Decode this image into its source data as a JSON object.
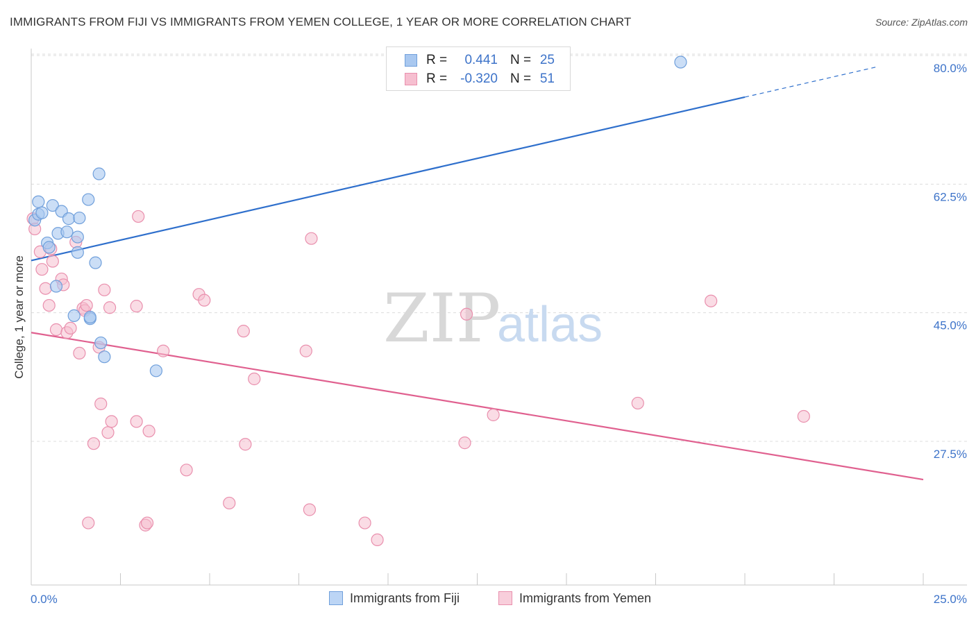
{
  "title": "IMMIGRANTS FROM FIJI VS IMMIGRANTS FROM YEMEN COLLEGE, 1 YEAR OR MORE CORRELATION CHART",
  "source": "Source: ZipAtlas.com",
  "watermark": {
    "zip": "ZIP",
    "atlas": "atlas"
  },
  "colors": {
    "fiji_fill": "#a9c8f0",
    "fiji_stroke": "#6f9fdb",
    "fiji_line": "#2e6fcc",
    "yemen_fill": "#f6bfd0",
    "yemen_stroke": "#e98fad",
    "yemen_line": "#e0608f",
    "tick_text": "#3d73c9",
    "grid": "#dcdcdc"
  },
  "legend": {
    "rows": [
      {
        "r_label": "R =",
        "r_value": "0.441",
        "n_label": "N =",
        "n_value": "25"
      },
      {
        "r_label": "R =",
        "r_value": "-0.320",
        "n_label": "N =",
        "n_value": "51"
      }
    ]
  },
  "bottom_legend": {
    "fiji": "Immigrants from Fiji",
    "yemen": "Immigrants from Yemen"
  },
  "chart_data": {
    "type": "scatter",
    "title": "IMMIGRANTS FROM FIJI VS IMMIGRANTS FROM YEMEN COLLEGE, 1 YEAR OR MORE CORRELATION CHART",
    "xlabel": "",
    "ylabel": "College, 1 year or more",
    "xlim": [
      0,
      25
    ],
    "ylim": [
      10,
      83
    ],
    "x_tick_labels": [
      "0.0%",
      "25.0%"
    ],
    "y_ticks": [
      27.5,
      45.0,
      62.5,
      80.0
    ],
    "y_tick_labels": [
      "27.5%",
      "45.0%",
      "62.5%",
      "80.0%"
    ],
    "grid": true,
    "series": [
      {
        "name": "Immigrants from Fiji",
        "points": [
          [
            0.1,
            59.3
          ],
          [
            0.2,
            60.1
          ],
          [
            0.2,
            61.8
          ],
          [
            0.3,
            60.3
          ],
          [
            0.45,
            56.2
          ],
          [
            0.5,
            55.6
          ],
          [
            0.6,
            61.3
          ],
          [
            0.7,
            50.3
          ],
          [
            0.75,
            57.5
          ],
          [
            0.85,
            60.5
          ],
          [
            1.0,
            57.7
          ],
          [
            1.05,
            59.5
          ],
          [
            1.2,
            46.3
          ],
          [
            1.3,
            57.0
          ],
          [
            1.35,
            59.6
          ],
          [
            1.3,
            54.9
          ],
          [
            1.6,
            62.1
          ],
          [
            1.65,
            45.9
          ],
          [
            1.65,
            46.1
          ],
          [
            1.8,
            53.5
          ],
          [
            1.9,
            65.6
          ],
          [
            1.95,
            42.6
          ],
          [
            2.05,
            40.7
          ],
          [
            3.5,
            38.8
          ],
          [
            18.2,
            80.8
          ]
        ],
        "trend": {
          "x": [
            0,
            25
          ],
          "y": [
            53.8,
            81.6
          ],
          "solid_until_x": 20
        }
      },
      {
        "name": "Immigrants from Yemen",
        "points": [
          [
            0.05,
            59.5
          ],
          [
            0.1,
            58.1
          ],
          [
            0.25,
            55.0
          ],
          [
            0.3,
            52.6
          ],
          [
            0.4,
            50.0
          ],
          [
            0.5,
            47.7
          ],
          [
            0.55,
            55.4
          ],
          [
            0.6,
            53.7
          ],
          [
            0.7,
            44.4
          ],
          [
            0.85,
            51.3
          ],
          [
            0.9,
            50.5
          ],
          [
            1.0,
            44.0
          ],
          [
            1.1,
            44.6
          ],
          [
            1.25,
            56.3
          ],
          [
            1.35,
            41.2
          ],
          [
            1.45,
            47.3
          ],
          [
            1.5,
            47.0
          ],
          [
            1.55,
            47.7
          ],
          [
            1.6,
            18.1
          ],
          [
            1.75,
            28.9
          ],
          [
            1.9,
            42.0
          ],
          [
            1.95,
            34.3
          ],
          [
            2.05,
            49.8
          ],
          [
            2.15,
            30.4
          ],
          [
            2.2,
            47.4
          ],
          [
            2.25,
            31.9
          ],
          [
            2.95,
            31.9
          ],
          [
            2.95,
            47.6
          ],
          [
            3.0,
            59.8
          ],
          [
            3.2,
            17.8
          ],
          [
            3.25,
            18.1
          ],
          [
            3.3,
            30.6
          ],
          [
            3.7,
            41.5
          ],
          [
            4.35,
            25.3
          ],
          [
            4.7,
            49.2
          ],
          [
            4.85,
            48.4
          ],
          [
            5.55,
            20.8
          ],
          [
            5.95,
            44.2
          ],
          [
            6.0,
            28.8
          ],
          [
            6.25,
            37.7
          ],
          [
            7.7,
            41.5
          ],
          [
            7.8,
            19.9
          ],
          [
            7.85,
            56.8
          ],
          [
            9.35,
            18.1
          ],
          [
            9.7,
            15.8
          ],
          [
            12.15,
            29.0
          ],
          [
            12.2,
            46.5
          ],
          [
            12.95,
            32.8
          ],
          [
            17.0,
            34.4
          ],
          [
            19.05,
            48.3
          ],
          [
            21.65,
            32.6
          ]
        ],
        "trend": {
          "x": [
            0,
            25
          ],
          "y": [
            44.0,
            24.0
          ]
        }
      }
    ]
  }
}
